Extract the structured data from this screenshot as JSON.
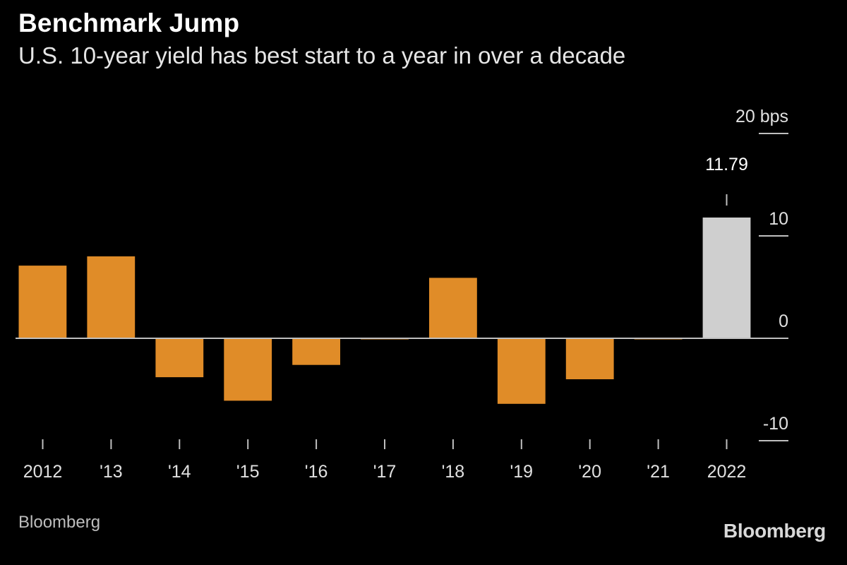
{
  "header": {
    "title": "Benchmark Jump",
    "subtitle": "U.S. 10-year yield has best start to a year in over a decade"
  },
  "footer": {
    "source": "Bloomberg",
    "brand": "Bloomberg"
  },
  "colors": {
    "background": "#000000",
    "bar": "#e08c28",
    "highlight": "#cfcfcf",
    "axis": "#bfbfbf",
    "text": "#ffffff"
  },
  "chart_data": {
    "type": "bar",
    "title": "Benchmark Jump",
    "subtitle": "U.S. 10-year yield has best start to a year in over a decade",
    "xlabel": "",
    "ylabel": "bps",
    "categories": [
      "2012",
      "'13",
      "'14",
      "'15",
      "'16",
      "'17",
      "'18",
      "'19",
      "'20",
      "'21",
      "2022"
    ],
    "values": [
      7.1,
      8.0,
      -3.8,
      -6.1,
      -2.6,
      -0.1,
      5.9,
      -6.4,
      -4.0,
      -0.1,
      11.79
    ],
    "highlight_index": 10,
    "annotation": {
      "index": 10,
      "text": "11.79"
    },
    "ylim": [
      -10,
      20
    ],
    "yticks": [
      {
        "value": 20,
        "label": "20 bps"
      },
      {
        "value": 10,
        "label": "10"
      },
      {
        "value": 0,
        "label": "0"
      },
      {
        "value": -10,
        "label": "-10"
      }
    ],
    "y_axis_side": "right",
    "grid": false
  }
}
